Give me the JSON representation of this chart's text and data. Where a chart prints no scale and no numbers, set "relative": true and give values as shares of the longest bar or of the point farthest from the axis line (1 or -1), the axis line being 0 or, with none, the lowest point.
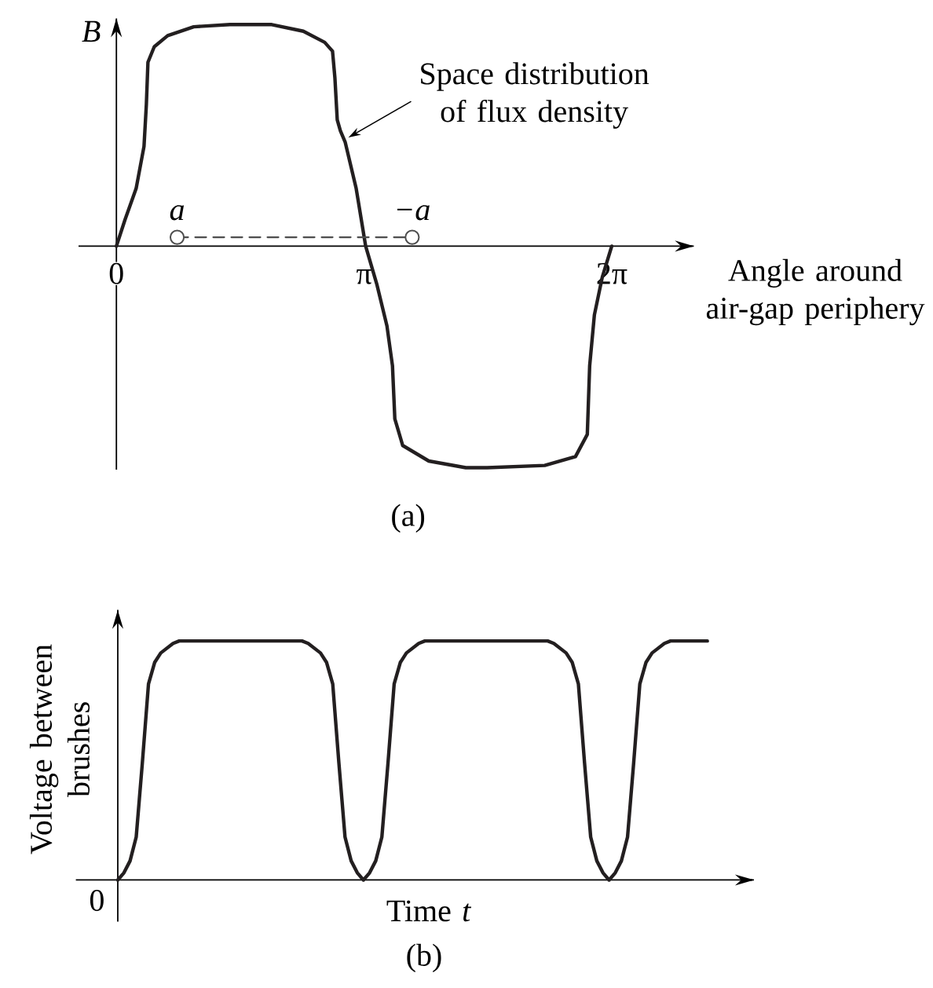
{
  "chart_data": [
    {
      "type": "line",
      "relative": true,
      "ylabel": "B",
      "xlabel": "Angle around air-gap periphery",
      "xlim": [
        -0.48,
        7.32
      ],
      "xticks": [
        0,
        {
          "value": 3.14,
          "label": "π"
        },
        {
          "value": 6.28,
          "label": "2π"
        }
      ],
      "series": [
        {
          "color": "#231f20",
          "x": [
            0,
            0.11,
            0.25,
            0.35,
            0.38,
            0.4,
            0.48,
            0.65,
            0.98,
            1.44,
            1.97,
            2.37,
            2.64,
            2.74,
            2.77,
            2.8,
            2.84,
            2.9,
            3.04,
            3.16,
            3.3,
            3.43,
            3.5,
            3.53,
            3.63,
            3.96,
            4.43,
            4.7,
            5.43,
            5.82,
            5.97,
            6.0,
            6.06,
            6.16,
            6.28
          ],
          "values": [
            0,
            0.12,
            0.26,
            0.45,
            0.64,
            0.83,
            0.9,
            0.95,
            0.99,
            1,
            1,
            0.97,
            0.92,
            0.88,
            0.76,
            0.57,
            0.52,
            0.47,
            0.26,
            0,
            -0.17,
            -0.36,
            -0.54,
            -0.78,
            -0.9,
            -0.97,
            -1,
            -1,
            -0.99,
            -0.95,
            -0.85,
            -0.54,
            -0.31,
            -0.14,
            0
          ]
        },
        {
          "color": "#4d4d4d",
          "x": [
            0.77,
            3.75
          ],
          "values": [
            0.04,
            0.04
          ],
          "marker": "circle",
          "line_style": "dashed"
        }
      ],
      "annotations": [
        {
          "text": "Space distribution of flux density",
          "x": 2.94,
          "y": 0.49
        },
        {
          "text": "a",
          "x": 0.77,
          "y": 0.04
        },
        {
          "text": "−a",
          "x": 3.75,
          "y": 0.04
        },
        "(a)"
      ]
    },
    {
      "type": "line",
      "relative": true,
      "ylabel": "Voltage between brushes",
      "xlabel": "Time *t*",
      "categories": [
        null,
        null,
        null,
        null,
        null,
        null,
        null,
        null,
        null,
        null,
        null,
        null,
        null,
        null,
        null,
        null,
        null,
        null,
        null,
        null,
        null,
        null,
        null,
        null,
        null,
        null,
        null,
        null,
        null,
        null,
        null,
        null,
        null,
        null,
        null,
        null,
        null,
        null,
        null,
        null,
        null,
        null,
        null,
        null,
        null,
        null,
        null,
        null,
        null,
        null,
        null,
        null,
        null,
        null,
        null,
        null,
        null,
        null,
        null,
        null,
        null,
        null,
        null,
        null,
        null,
        null,
        null,
        null,
        null,
        null,
        null,
        null,
        null,
        null,
        null,
        null,
        null,
        null,
        null,
        null,
        null,
        null,
        null,
        null,
        null,
        null,
        null,
        null,
        null,
        null,
        null,
        null,
        null,
        null,
        null,
        null,
        null
      ],
      "color": "#231f20",
      "values": [
        0,
        0.03,
        0.08,
        0.18,
        0.49,
        0.82,
        0.91,
        0.95,
        0.97,
        0.99,
        1,
        1,
        1,
        1,
        1,
        1,
        1,
        1,
        1,
        1,
        1,
        1,
        1,
        1,
        1,
        1,
        1,
        1,
        1,
        1,
        1,
        0.99,
        0.97,
        0.95,
        0.91,
        0.82,
        0.49,
        0.18,
        0.08,
        0.03,
        0,
        0.03,
        0.08,
        0.18,
        0.49,
        0.82,
        0.91,
        0.95,
        0.97,
        0.99,
        1,
        1,
        1,
        1,
        1,
        1,
        1,
        1,
        1,
        1,
        1,
        1,
        1,
        1,
        1,
        1,
        1,
        1,
        1,
        1,
        1,
        0.99,
        0.97,
        0.95,
        0.91,
        0.82,
        0.49,
        0.18,
        0.08,
        0.03,
        0,
        0.03,
        0.08,
        0.18,
        0.49,
        0.82,
        0.91,
        0.95,
        0.97,
        0.99,
        1,
        1,
        1,
        1,
        1,
        1,
        1
      ],
      "annotations": [
        "0",
        "(b)"
      ]
    }
  ]
}
